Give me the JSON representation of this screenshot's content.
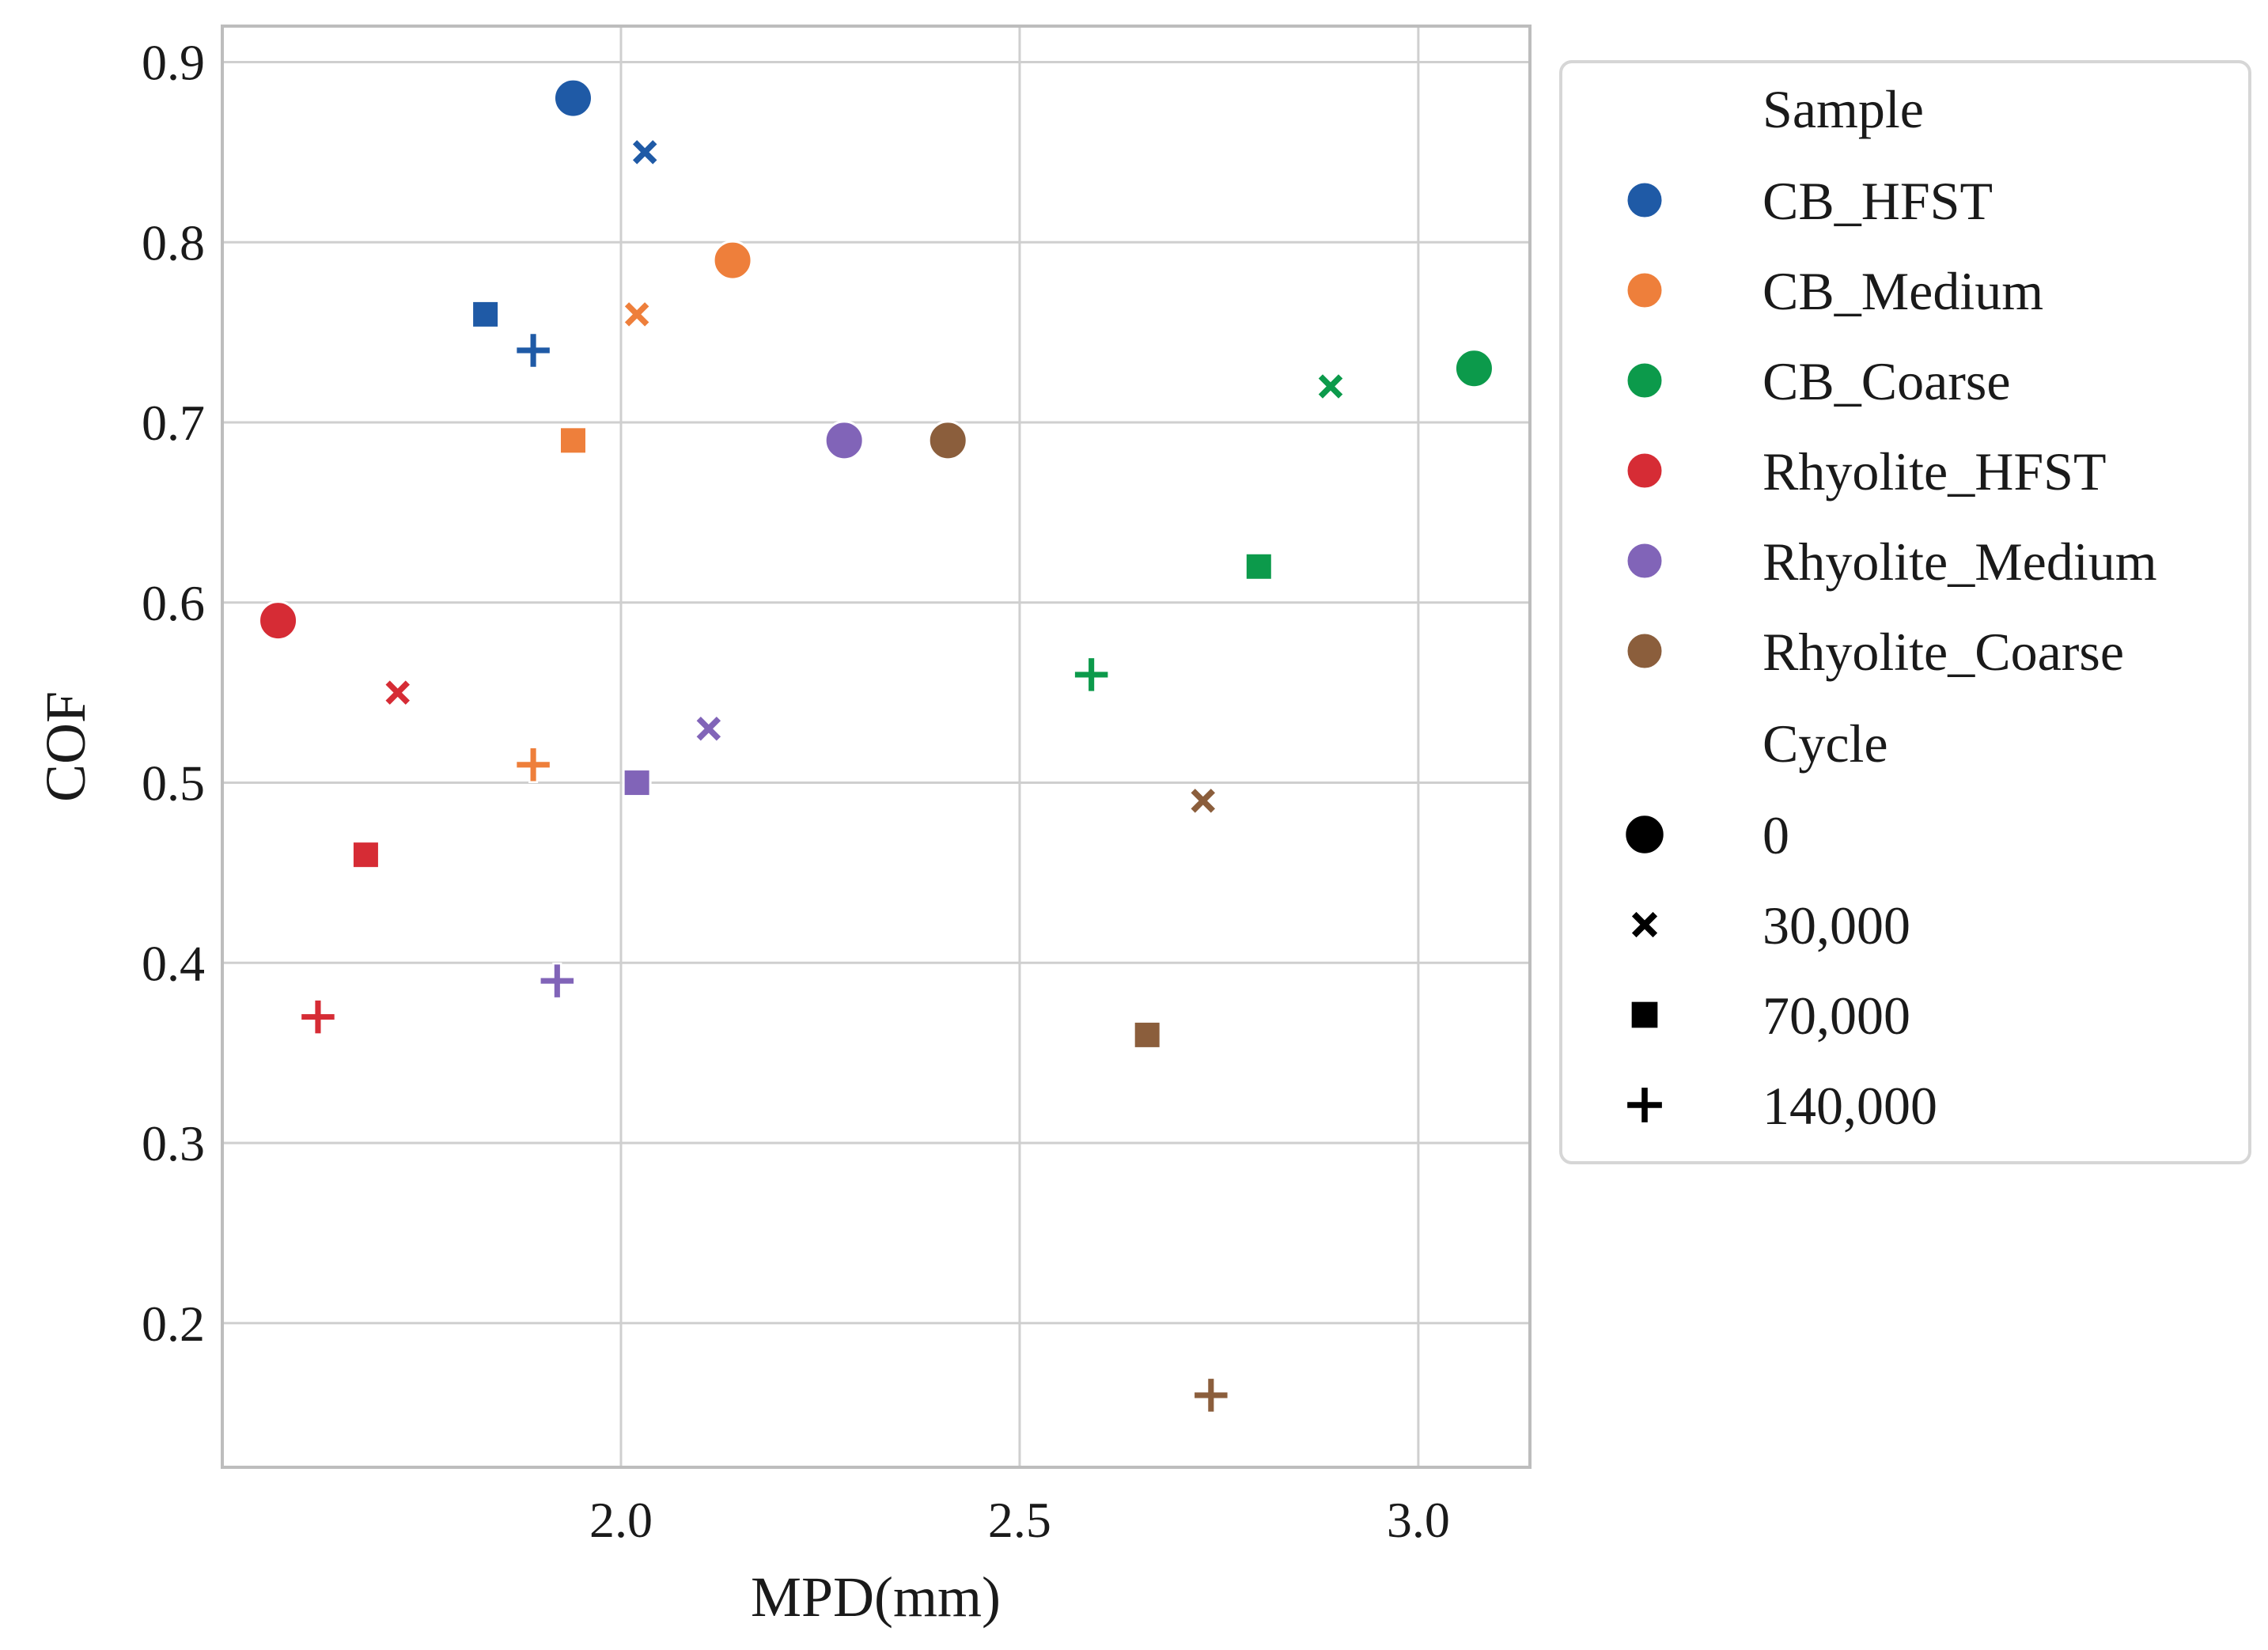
{
  "chart_data": {
    "type": "scatter",
    "title": "",
    "xlabel": "MPD(mm)",
    "ylabel": "COF",
    "xlim": [
      1.5,
      3.14
    ],
    "ylim": [
      0.12,
      0.92
    ],
    "xticks": [
      2.0,
      2.5,
      3.0
    ],
    "xtick_labels": [
      "2.0",
      "2.5",
      "3.0"
    ],
    "yticks": [
      0.2,
      0.3,
      0.4,
      0.5,
      0.6,
      0.7,
      0.8,
      0.9
    ],
    "ytick_labels": [
      "0.2",
      "0.3",
      "0.4",
      "0.5",
      "0.6",
      "0.7",
      "0.8",
      "0.9"
    ],
    "grid": true,
    "legend_position": "outside-right",
    "hue_title": "Sample",
    "style_title": "Cycle",
    "samples": [
      {
        "name": "CB_HFST",
        "color": "#1f5aa6"
      },
      {
        "name": "CB_Medium",
        "color": "#ee7f3b"
      },
      {
        "name": "CB_Coarse",
        "color": "#0c9a4b"
      },
      {
        "name": "Rhyolite_HFST",
        "color": "#d62c35"
      },
      {
        "name": "Rhyolite_Medium",
        "color": "#8164b8"
      },
      {
        "name": "Rhyolite_Coarse",
        "color": "#8b5e3c"
      }
    ],
    "cycles": [
      {
        "name": "0",
        "marker": "circle"
      },
      {
        "name": "30,000",
        "marker": "x"
      },
      {
        "name": "70,000",
        "marker": "square"
      },
      {
        "name": "140,000",
        "marker": "plus"
      }
    ],
    "series": [
      {
        "name": "CB_HFST",
        "points": [
          {
            "cycle": "0",
            "x": 1.94,
            "y": 0.88
          },
          {
            "cycle": "30,000",
            "x": 2.03,
            "y": 0.85
          },
          {
            "cycle": "70,000",
            "x": 1.83,
            "y": 0.76
          },
          {
            "cycle": "140,000",
            "x": 1.89,
            "y": 0.74
          }
        ]
      },
      {
        "name": "CB_Medium",
        "points": [
          {
            "cycle": "0",
            "x": 2.14,
            "y": 0.79
          },
          {
            "cycle": "30,000",
            "x": 2.02,
            "y": 0.76
          },
          {
            "cycle": "70,000",
            "x": 1.94,
            "y": 0.69
          },
          {
            "cycle": "140,000",
            "x": 1.89,
            "y": 0.51
          }
        ]
      },
      {
        "name": "CB_Coarse",
        "points": [
          {
            "cycle": "0",
            "x": 3.07,
            "y": 0.73
          },
          {
            "cycle": "30,000",
            "x": 2.89,
            "y": 0.72
          },
          {
            "cycle": "70,000",
            "x": 2.8,
            "y": 0.62
          },
          {
            "cycle": "140,000",
            "x": 2.59,
            "y": 0.56
          }
        ]
      },
      {
        "name": "Rhyolite_HFST",
        "points": [
          {
            "cycle": "0",
            "x": 1.57,
            "y": 0.59
          },
          {
            "cycle": "30,000",
            "x": 1.72,
            "y": 0.55
          },
          {
            "cycle": "70,000",
            "x": 1.68,
            "y": 0.46
          },
          {
            "cycle": "140,000",
            "x": 1.62,
            "y": 0.37
          }
        ]
      },
      {
        "name": "Rhyolite_Medium",
        "points": [
          {
            "cycle": "0",
            "x": 2.28,
            "y": 0.69
          },
          {
            "cycle": "30,000",
            "x": 2.11,
            "y": 0.53
          },
          {
            "cycle": "70,000",
            "x": 2.02,
            "y": 0.5
          },
          {
            "cycle": "140,000",
            "x": 1.92,
            "y": 0.39
          }
        ]
      },
      {
        "name": "Rhyolite_Coarse",
        "points": [
          {
            "cycle": "0",
            "x": 2.41,
            "y": 0.69
          },
          {
            "cycle": "30,000",
            "x": 2.73,
            "y": 0.49
          },
          {
            "cycle": "70,000",
            "x": 2.66,
            "y": 0.36
          },
          {
            "cycle": "140,000",
            "x": 2.74,
            "y": 0.16
          }
        ]
      }
    ]
  }
}
